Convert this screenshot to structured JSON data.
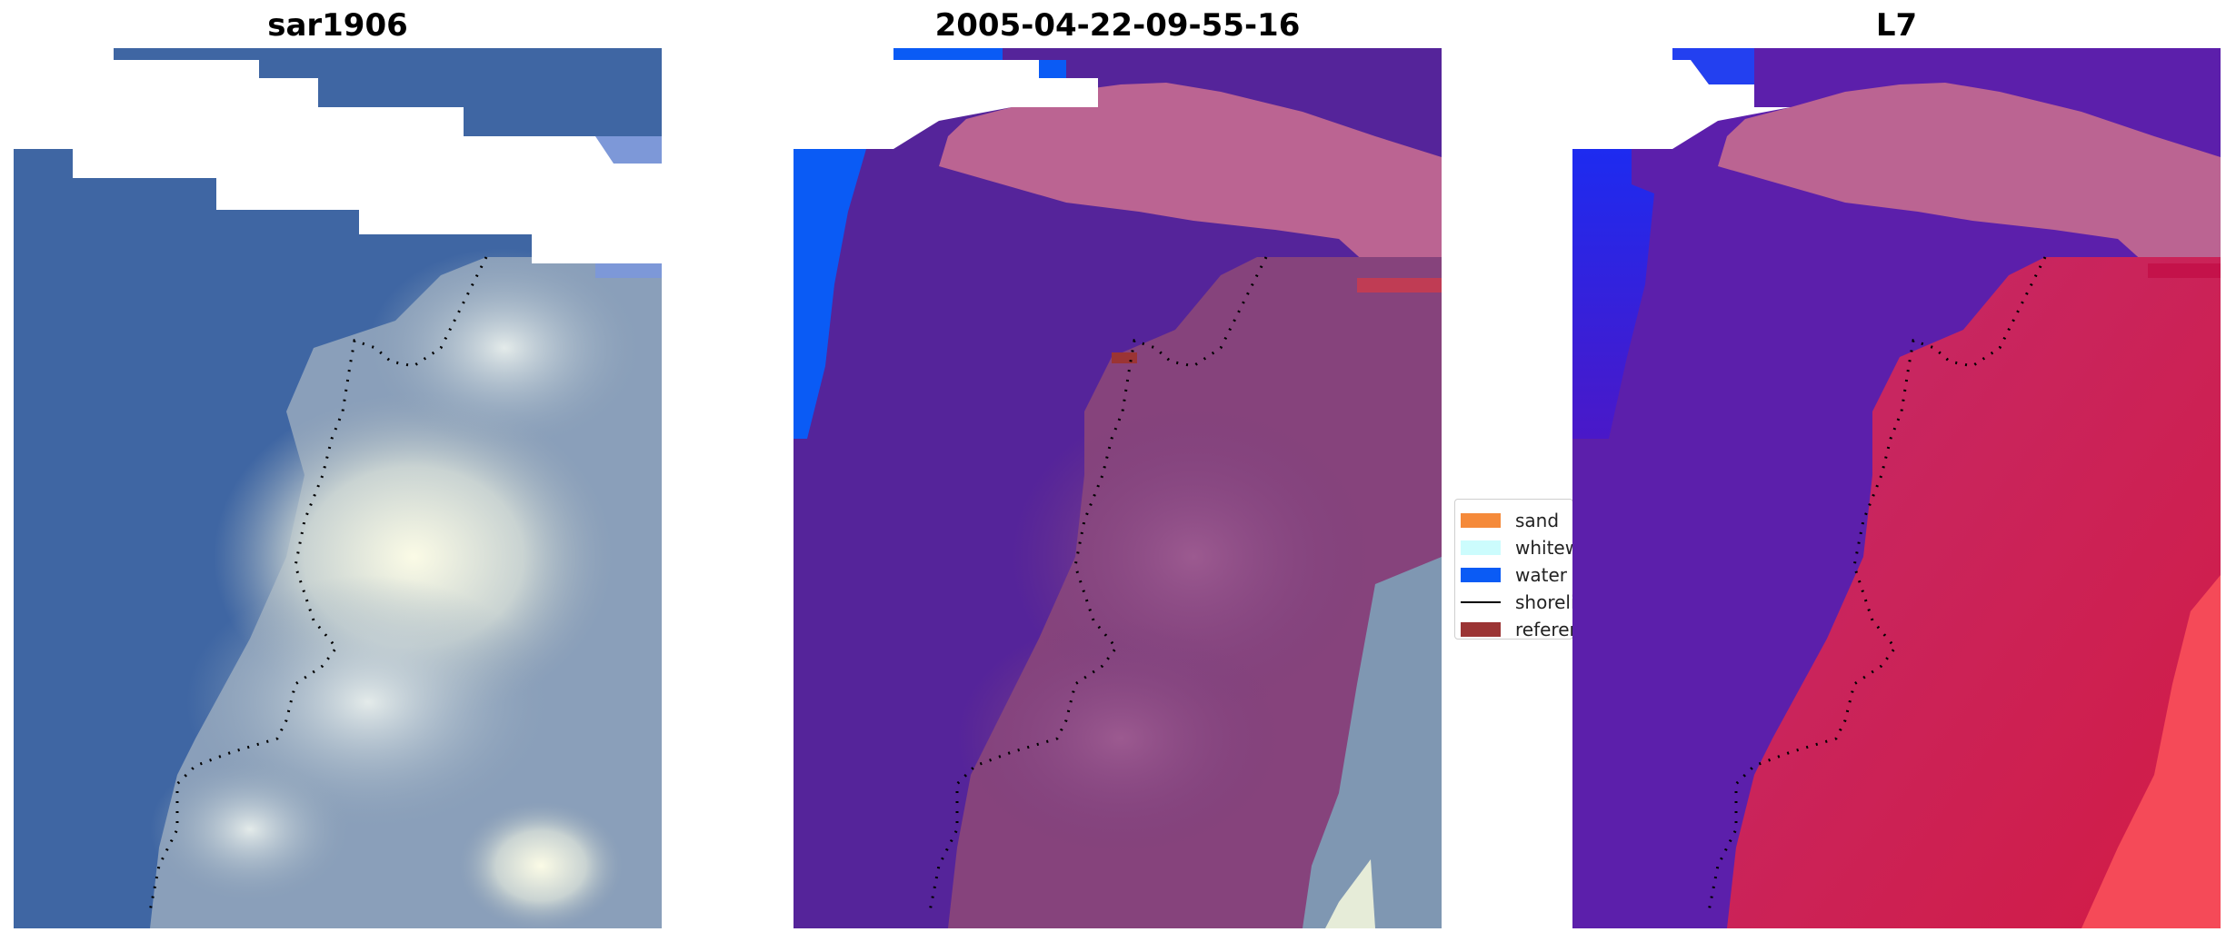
{
  "panels": [
    {
      "title": "sar1906",
      "image": "satellite-rgb-image"
    },
    {
      "title": "2005-04-22-09-55-16",
      "image": "classified-image"
    },
    {
      "title": "L7",
      "image": "probability-image"
    }
  ],
  "legend": {
    "items": [
      {
        "label": "sand",
        "color": "#f58a3a",
        "kind": "patch"
      },
      {
        "label": "whitewater",
        "color": "#ccfcfd",
        "kind": "patch"
      },
      {
        "label": "water",
        "color": "#0a5bf5",
        "kind": "patch"
      },
      {
        "label": "shoreline",
        "color": "#000000",
        "kind": "line"
      },
      {
        "label": "reference shoreline",
        "color": "#9b3434",
        "kind": "patch"
      }
    ]
  }
}
